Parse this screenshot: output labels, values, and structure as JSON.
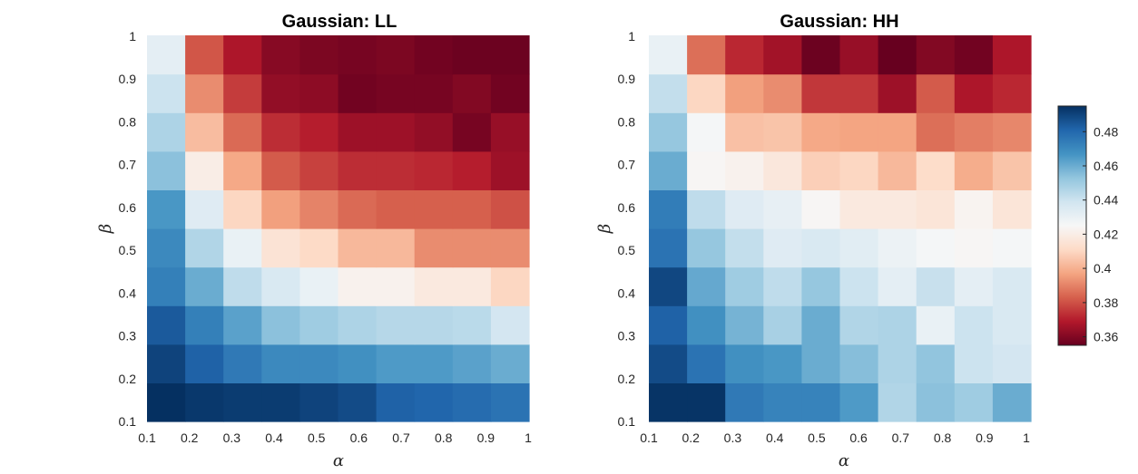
{
  "chart_data": [
    {
      "type": "heatmap",
      "title": "Gaussian: LL",
      "xlabel": "α",
      "ylabel": "β",
      "x": [
        0.1,
        0.2,
        0.3,
        0.4,
        0.5,
        0.6,
        0.7,
        0.8,
        0.9,
        1
      ],
      "y": [
        0.1,
        0.2,
        0.3,
        0.4,
        0.5,
        0.6,
        0.7,
        0.8,
        0.9,
        1
      ],
      "xticklabels": [
        "0.1",
        "0.2",
        "0.3",
        "0.4",
        "0.5",
        "0.6",
        "0.7",
        "0.8",
        "0.9",
        "1"
      ],
      "yticklabels": [
        "0.1",
        "0.2",
        "0.3",
        "0.4",
        "0.5",
        "0.6",
        "0.7",
        "0.8",
        "0.9",
        "1"
      ],
      "values": [
        [
          0.495,
          0.493,
          0.492,
          0.492,
          0.49,
          0.488,
          0.482,
          0.481,
          0.479,
          0.477
        ],
        [
          0.49,
          0.482,
          0.475,
          0.47,
          0.47,
          0.468,
          0.465,
          0.465,
          0.463,
          0.46
        ],
        [
          0.484,
          0.473,
          0.463,
          0.454,
          0.45,
          0.447,
          0.445,
          0.445,
          0.444,
          0.438
        ],
        [
          0.473,
          0.46,
          0.443,
          0.436,
          0.43,
          0.422,
          0.422,
          0.418,
          0.418,
          0.41
        ],
        [
          0.47,
          0.446,
          0.43,
          0.415,
          0.411,
          0.402,
          0.402,
          0.392,
          0.392,
          0.392
        ],
        [
          0.466,
          0.434,
          0.41,
          0.396,
          0.39,
          0.385,
          0.383,
          0.383,
          0.383,
          0.38
        ],
        [
          0.454,
          0.42,
          0.398,
          0.382,
          0.377,
          0.373,
          0.373,
          0.372,
          0.37,
          0.365
        ],
        [
          0.447,
          0.403,
          0.385,
          0.373,
          0.37,
          0.365,
          0.365,
          0.363,
          0.358,
          0.364
        ],
        [
          0.44,
          0.392,
          0.376,
          0.363,
          0.362,
          0.357,
          0.358,
          0.358,
          0.36,
          0.357
        ],
        [
          0.432,
          0.381,
          0.368,
          0.361,
          0.359,
          0.358,
          0.359,
          0.357,
          0.356,
          0.356
        ]
      ]
    },
    {
      "type": "heatmap",
      "title": "Gaussian: HH",
      "xlabel": "α",
      "ylabel": "β",
      "x": [
        0.1,
        0.2,
        0.3,
        0.4,
        0.5,
        0.6,
        0.7,
        0.8,
        0.9,
        1
      ],
      "y": [
        0.1,
        0.2,
        0.3,
        0.4,
        0.5,
        0.6,
        0.7,
        0.8,
        0.9,
        1
      ],
      "xticklabels": [
        "0.1",
        "0.2",
        "0.3",
        "0.4",
        "0.5",
        "0.6",
        "0.7",
        "0.8",
        "0.9",
        "1"
      ],
      "yticklabels": [
        "0.1",
        "0.2",
        "0.3",
        "0.4",
        "0.5",
        "0.6",
        "0.7",
        "0.8",
        "0.9",
        "1"
      ],
      "values": [
        [
          0.494,
          0.494,
          0.475,
          0.472,
          0.472,
          0.465,
          0.446,
          0.454,
          0.45,
          0.46
        ],
        [
          0.488,
          0.477,
          0.468,
          0.466,
          0.46,
          0.455,
          0.447,
          0.453,
          0.44,
          0.438
        ],
        [
          0.482,
          0.468,
          0.458,
          0.448,
          0.46,
          0.446,
          0.447,
          0.43,
          0.44,
          0.436
        ],
        [
          0.489,
          0.461,
          0.45,
          0.443,
          0.452,
          0.44,
          0.432,
          0.441,
          0.432,
          0.436
        ],
        [
          0.477,
          0.452,
          0.442,
          0.434,
          0.436,
          0.433,
          0.429,
          0.426,
          0.424,
          0.426
        ],
        [
          0.474,
          0.443,
          0.434,
          0.431,
          0.424,
          0.418,
          0.418,
          0.416,
          0.423,
          0.416
        ],
        [
          0.46,
          0.424,
          0.422,
          0.417,
          0.408,
          0.41,
          0.402,
          0.412,
          0.399,
          0.405
        ],
        [
          0.452,
          0.426,
          0.404,
          0.405,
          0.398,
          0.397,
          0.397,
          0.386,
          0.389,
          0.391
        ],
        [
          0.442,
          0.41,
          0.396,
          0.392,
          0.375,
          0.375,
          0.365,
          0.382,
          0.368,
          0.372
        ],
        [
          0.43,
          0.386,
          0.372,
          0.366,
          0.356,
          0.364,
          0.355,
          0.36,
          0.357,
          0.368
        ]
      ]
    }
  ],
  "colorbar": {
    "vmin": 0.355,
    "vmax": 0.495,
    "ticks": [
      0.48,
      0.46,
      0.44,
      0.42,
      0.4,
      0.38,
      0.36
    ],
    "ticklabels": [
      "0.48",
      "0.46",
      "0.44",
      "0.42",
      "0.4",
      "0.38",
      "0.36"
    ],
    "colormap": [
      "#67001f",
      "#b2182b",
      "#d6604d",
      "#f4a582",
      "#fddbc7",
      "#f7f7f7",
      "#d1e5f0",
      "#92c5de",
      "#4393c3",
      "#2166ac",
      "#053061"
    ]
  }
}
